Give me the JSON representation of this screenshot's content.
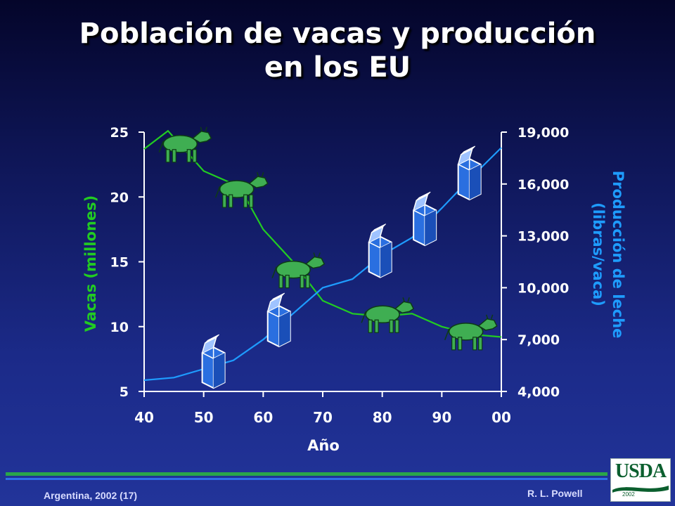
{
  "title_line1": "Población de vacas y producción",
  "title_line2": "en los EU",
  "footer": {
    "left": "Argentina,  2002 (17)",
    "right": "R. L. Powell"
  },
  "logo": {
    "text": "USDA",
    "year": "2002"
  },
  "colors": {
    "cows": "#22cc22",
    "milk": "#1e9cff",
    "axis": "#ffffff"
  },
  "chart_data": {
    "type": "line",
    "xlabel": "Año",
    "ylabel_left": "Vacas (millones)",
    "ylabel_right": "Producción de leche (libras/vaca)",
    "x_ticks": [
      "40",
      "50",
      "60",
      "70",
      "80",
      "90",
      "00"
    ],
    "xlim": [
      40,
      100
    ],
    "y_left_ticks": [
      "5",
      "10",
      "15",
      "20",
      "25"
    ],
    "ylim_left": [
      5,
      25
    ],
    "y_right_ticks": [
      "4,000",
      "7,000",
      "10,000",
      "13,000",
      "16,000",
      "19,000"
    ],
    "ylim_right": [
      4000,
      19000
    ],
    "series": [
      {
        "name": "Vacas (millones)",
        "axis": "left",
        "x": [
          40,
          44,
          50,
          56,
          60,
          65,
          70,
          75,
          80,
          85,
          90,
          95,
          100
        ],
        "y": [
          23.7,
          25.1,
          22.0,
          20.8,
          17.5,
          15.0,
          12.0,
          11.0,
          10.8,
          11.0,
          10.0,
          9.4,
          9.2
        ]
      },
      {
        "name": "Producción de leche (libras/vaca)",
        "axis": "right",
        "x": [
          40,
          45,
          50,
          55,
          60,
          65,
          70,
          75,
          80,
          85,
          90,
          95,
          100
        ],
        "y": [
          4650,
          4800,
          5300,
          5800,
          7000,
          8500,
          10000,
          10500,
          11900,
          12900,
          14600,
          16400,
          18100
        ]
      }
    ]
  }
}
